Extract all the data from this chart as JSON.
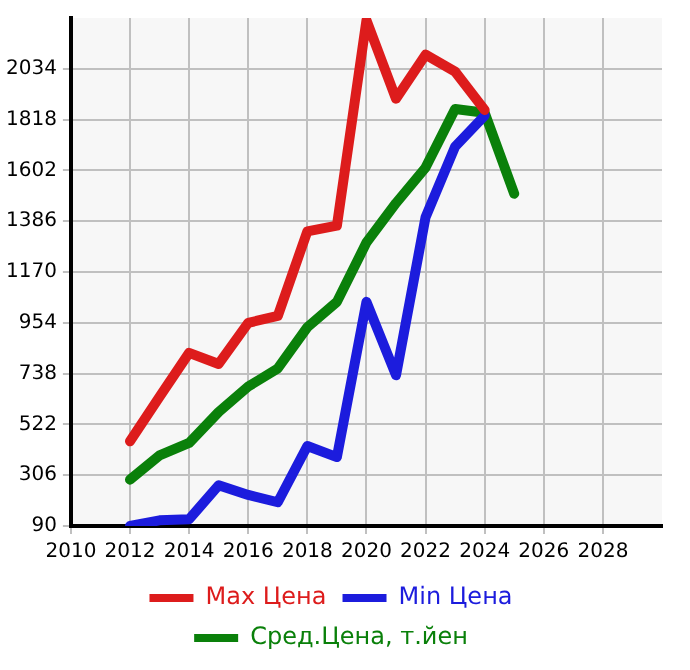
{
  "chart_data": {
    "type": "line",
    "x": [
      2012,
      2013,
      2014,
      2015,
      2016,
      2017,
      2018,
      2019,
      2020,
      2021,
      2022,
      2023,
      2024,
      2025
    ],
    "series": [
      {
        "name": "Max Цена",
        "color": "#dd1c1c",
        "values": [
          450,
          640,
          826,
          779,
          954,
          983,
          1343,
          1367,
          2240,
          1907,
          2094,
          2022,
          1859,
          null
        ]
      },
      {
        "name": "Min Цена",
        "color": "#1c1cdd",
        "values": [
          90,
          114,
          119,
          263,
          222,
          191,
          430,
          383,
          1043,
          731,
          1403,
          1703,
          1835,
          null
        ]
      },
      {
        "name": "Сред.Цена, т.йен",
        "color": "#0a800a",
        "values": [
          287,
          390,
          443,
          575,
          683,
          760,
          935,
          1043,
          1295,
          1463,
          1614,
          1863,
          1847,
          1503
        ]
      }
    ],
    "xlim": [
      2010,
      2030
    ],
    "xticks": [
      2010,
      2012,
      2014,
      2016,
      2018,
      2020,
      2022,
      2024,
      2026,
      2028
    ],
    "ylim": [
      90,
      2250
    ],
    "yticks": [
      90,
      306,
      522,
      738,
      954,
      1170,
      1386,
      1602,
      1818,
      2034
    ],
    "grid": true,
    "legend": "bottom",
    "marker": "none",
    "line_style": "solid"
  }
}
